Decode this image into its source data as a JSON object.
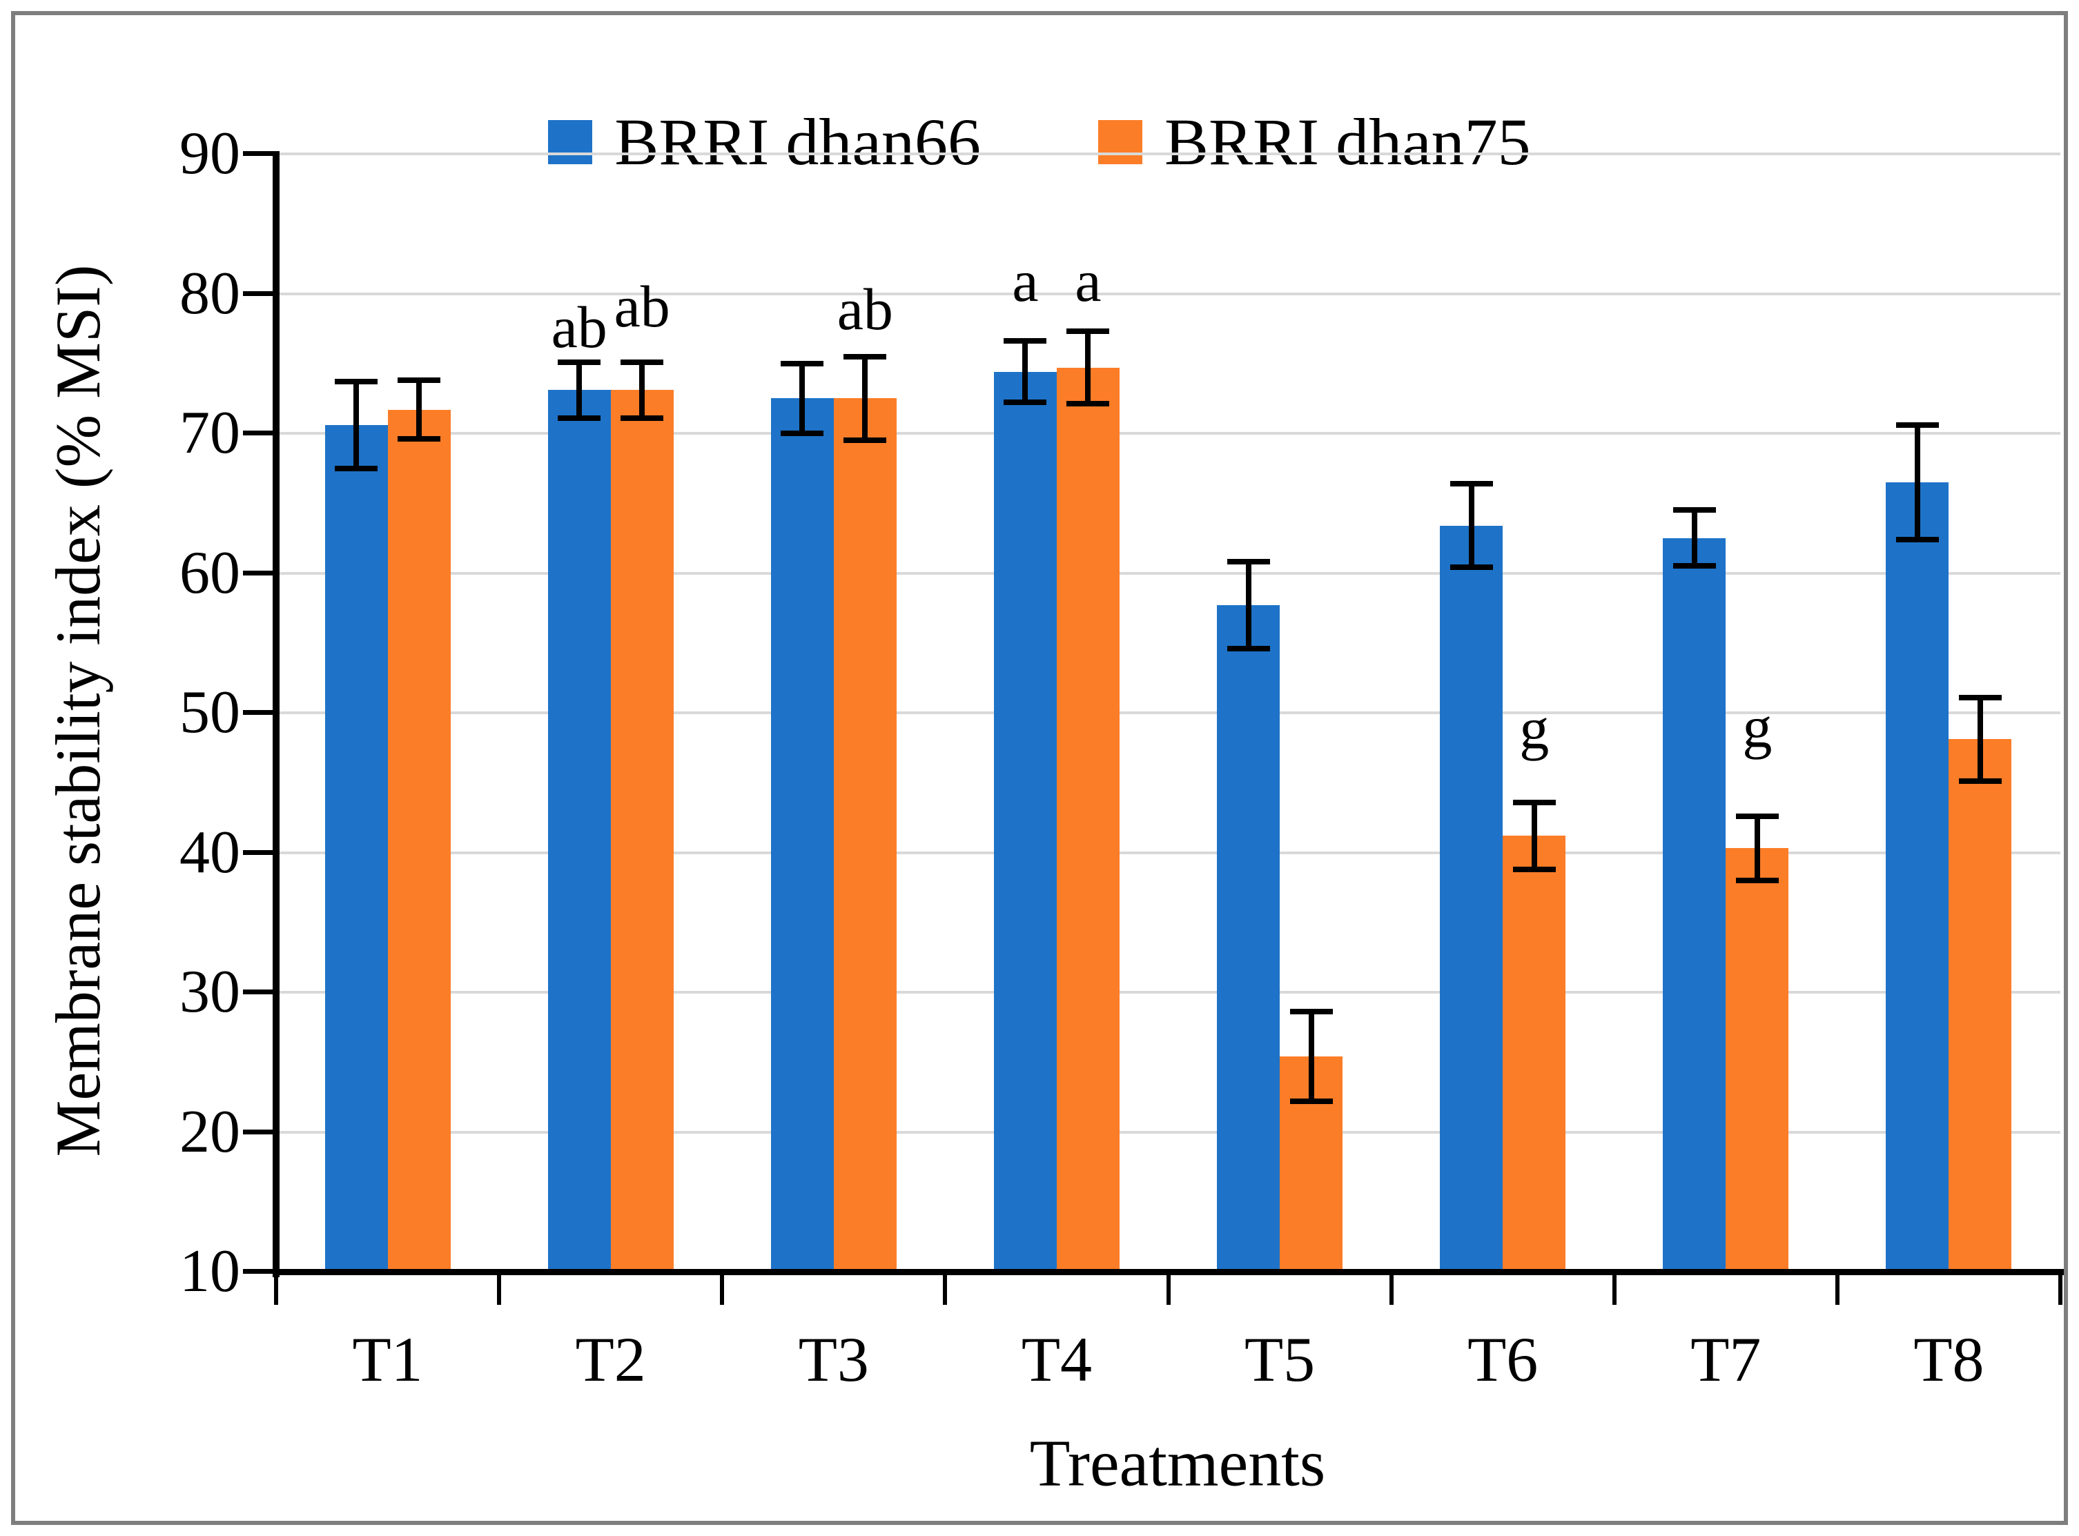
{
  "figure": {
    "background": "#ffffff",
    "border_color": "#7e7e7e"
  },
  "legend": {
    "items": [
      {
        "label": "BRRI dhan66",
        "color": "#1e73c8"
      },
      {
        "label": "BRRI dhan75",
        "color": "#fc7d28"
      }
    ]
  },
  "chart_data": {
    "type": "bar",
    "title": "",
    "xlabel": "Treatments",
    "ylabel": "Membrane stability index (% MSI)",
    "ylim": [
      10,
      90
    ],
    "yticks": [
      10,
      20,
      30,
      40,
      50,
      60,
      70,
      80,
      90
    ],
    "grid": true,
    "gridline_color": "#d9d9d9",
    "legend_position": "top-center",
    "categories": [
      "T1",
      "T2",
      "T3",
      "T4",
      "T5",
      "T6",
      "T7",
      "T8"
    ],
    "series": [
      {
        "name": "BRRI dhan66",
        "color": "#1e73c8",
        "values": [
          70.6,
          73.1,
          72.5,
          74.4,
          57.7,
          63.4,
          62.5,
          66.5
        ],
        "errors": [
          3.1,
          2.0,
          2.5,
          2.2,
          3.1,
          3.0,
          2.0,
          4.1
        ],
        "letters": [
          "",
          "ab",
          "",
          "a",
          "",
          "",
          "",
          ""
        ],
        "letter_v": [
          null,
          77.6,
          null,
          80.9,
          null,
          null,
          null,
          null
        ]
      },
      {
        "name": "BRRI dhan75",
        "color": "#fc7d28",
        "values": [
          71.7,
          73.1,
          72.5,
          74.7,
          25.4,
          41.2,
          40.3,
          48.1
        ],
        "errors": [
          2.1,
          2.0,
          3.0,
          2.6,
          3.2,
          2.4,
          2.3,
          3.0
        ],
        "letters": [
          "",
          "ab",
          "ab",
          "a",
          "",
          "g",
          "g",
          ""
        ],
        "letter_v": [
          null,
          79.1,
          78.9,
          80.9,
          null,
          48.9,
          49.0,
          null
        ]
      }
    ]
  }
}
